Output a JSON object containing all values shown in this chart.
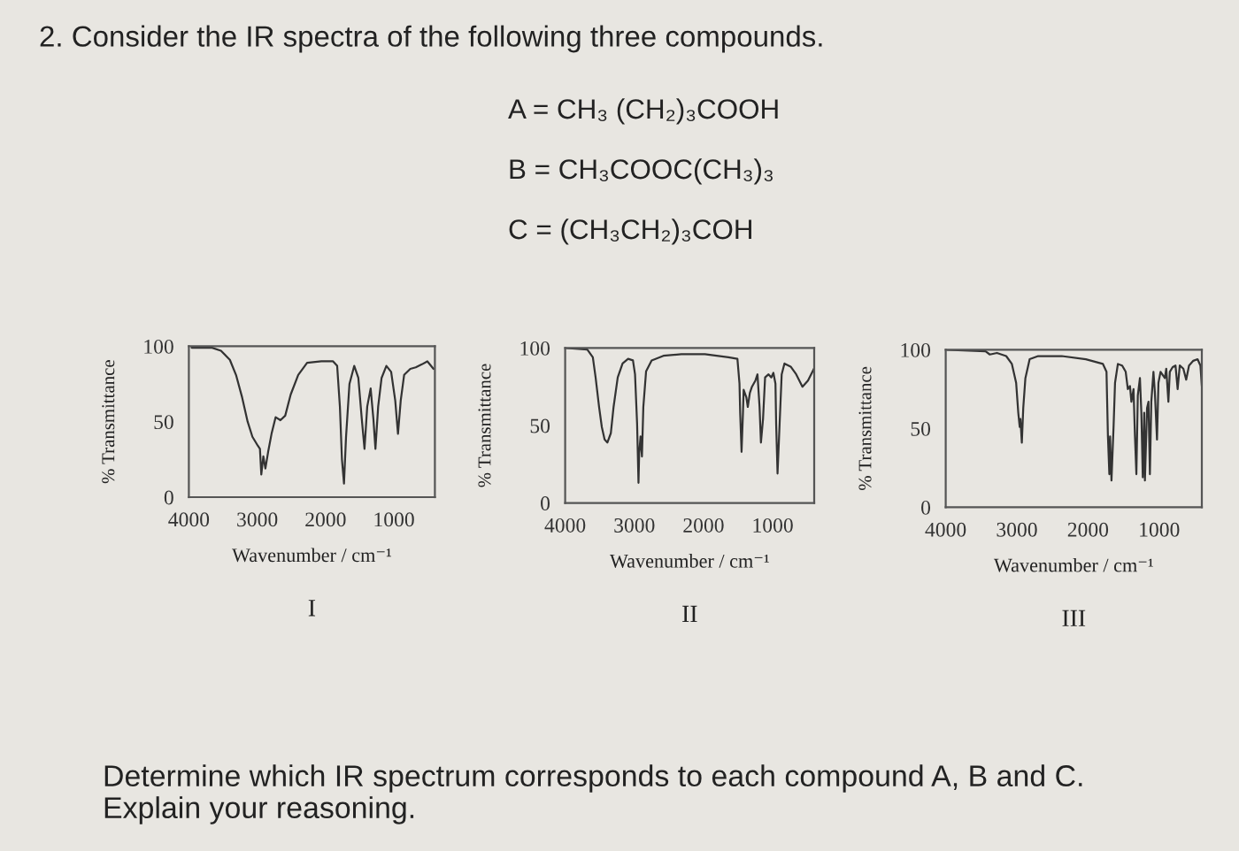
{
  "chart_data": [
    {
      "type": "other",
      "title": "2. Consider the IR spectra of the following three compounds.",
      "annotations": [
        "A = CH₃ (CH₂)₃COOH",
        "B = CH₃COOC(CH₃)₃",
        "C = (CH₃CH₂)₃COH"
      ]
    },
    {
      "type": "line",
      "xlabel": "Wavenumber / cm⁻¹",
      "ylabel": "% Transmittance",
      "xlim": [
        4000,
        400
      ],
      "xticks": [
        4000,
        3000,
        2000,
        1000
      ],
      "ylim": [
        0,
        100
      ],
      "yticks": [
        0,
        50,
        100
      ],
      "color": "#333333",
      "annotations": [
        "I"
      ],
      "x": [
        3960,
        3660,
        3530,
        3400,
        3310,
        3220,
        3140,
        3070,
        2990,
        2960,
        2940,
        2910,
        2880,
        2840,
        2790,
        2730,
        2660,
        2590,
        2510,
        2400,
        2270,
        2060,
        1890,
        1830,
        1790,
        1760,
        1730,
        1700,
        1650,
        1580,
        1520,
        1470,
        1430,
        1390,
        1340,
        1300,
        1270,
        1230,
        1180,
        1110,
        1040,
        980,
        940,
        900,
        850,
        760,
        680,
        590,
        510,
        420
      ],
      "values": [
        99,
        99,
        97,
        91,
        81,
        66,
        50,
        40,
        34,
        32,
        15,
        27,
        19,
        30,
        42,
        53,
        51,
        54,
        68,
        81,
        89,
        90,
        90,
        87,
        60,
        25,
        9,
        40,
        75,
        87,
        79,
        52,
        32,
        60,
        72,
        52,
        32,
        60,
        79,
        87,
        83,
        64,
        42,
        64,
        81,
        85,
        86,
        88,
        90,
        85
      ]
    },
    {
      "type": "line",
      "xlabel": "Wavenumber / cm⁻¹",
      "ylabel": "% Transmittance",
      "xlim": [
        4000,
        400
      ],
      "xticks": [
        4000,
        3000,
        2000,
        1000
      ],
      "ylim": [
        0,
        100
      ],
      "yticks": [
        0,
        50,
        100
      ],
      "color": "#333333",
      "annotations": [
        "II"
      ],
      "x": [
        3980,
        3680,
        3600,
        3560,
        3510,
        3470,
        3430,
        3390,
        3340,
        3300,
        3240,
        3170,
        3090,
        3020,
        2990,
        2960,
        2940,
        2930,
        2910,
        2890,
        2870,
        2830,
        2750,
        2580,
        2320,
        1980,
        1640,
        1510,
        1480,
        1470,
        1450,
        1430,
        1420,
        1380,
        1360,
        1330,
        1300,
        1250,
        1220,
        1190,
        1170,
        1140,
        1110,
        1060,
        1020,
        990,
        960,
        950,
        930,
        900,
        870,
        830,
        740,
        660,
        570,
        490,
        400
      ],
      "values": [
        100,
        99,
        94,
        81,
        62,
        49,
        41,
        39,
        45,
        62,
        81,
        90,
        93,
        92,
        83,
        51,
        13,
        32,
        43,
        30,
        62,
        85,
        92,
        95,
        96,
        96,
        94,
        93,
        77,
        58,
        33,
        58,
        73,
        68,
        62,
        71,
        75,
        79,
        83,
        62,
        39,
        54,
        81,
        83,
        81,
        84,
        77,
        51,
        19,
        51,
        83,
        90,
        88,
        83,
        75,
        79,
        87
      ]
    },
    {
      "type": "line",
      "xlabel": "Wavenumber / cm⁻¹",
      "ylabel": "% Transmittance",
      "xlim": [
        4000,
        400
      ],
      "xticks": [
        4000,
        3000,
        2000,
        1000
      ],
      "ylim": [
        0,
        100
      ],
      "yticks": [
        0,
        50,
        100
      ],
      "color": "#333333",
      "annotations": [
        "III"
      ],
      "x": [
        3980,
        3440,
        3380,
        3280,
        3150,
        3070,
        3010,
        2980,
        2960,
        2950,
        2930,
        2910,
        2880,
        2820,
        2700,
        2370,
        2030,
        1790,
        1740,
        1720,
        1700,
        1690,
        1670,
        1640,
        1620,
        1580,
        1520,
        1470,
        1440,
        1410,
        1390,
        1360,
        1340,
        1320,
        1300,
        1270,
        1250,
        1230,
        1210,
        1200,
        1170,
        1150,
        1130,
        1110,
        1080,
        1060,
        1030,
        1010,
        980,
        950,
        920,
        900,
        870,
        850,
        810,
        770,
        740,
        710,
        660,
        620,
        580,
        520,
        460,
        420,
        400
      ],
      "values": [
        100,
        99,
        97,
        98,
        96,
        91,
        79,
        60,
        51,
        56,
        41,
        63,
        82,
        94,
        96,
        96,
        94,
        91,
        86,
        45,
        21,
        45,
        17,
        52,
        79,
        91,
        90,
        86,
        75,
        77,
        67,
        75,
        45,
        21,
        71,
        82,
        60,
        19,
        60,
        17,
        63,
        67,
        21,
        67,
        86,
        73,
        43,
        79,
        86,
        84,
        82,
        88,
        67,
        86,
        89,
        90,
        75,
        90,
        88,
        81,
        90,
        93,
        94,
        90,
        77
      ]
    },
    {
      "type": "other",
      "annotations": [
        "Determine which IR spectrum corresponds to each compound A, B and C.",
        "Explain your reasoning."
      ]
    }
  ]
}
